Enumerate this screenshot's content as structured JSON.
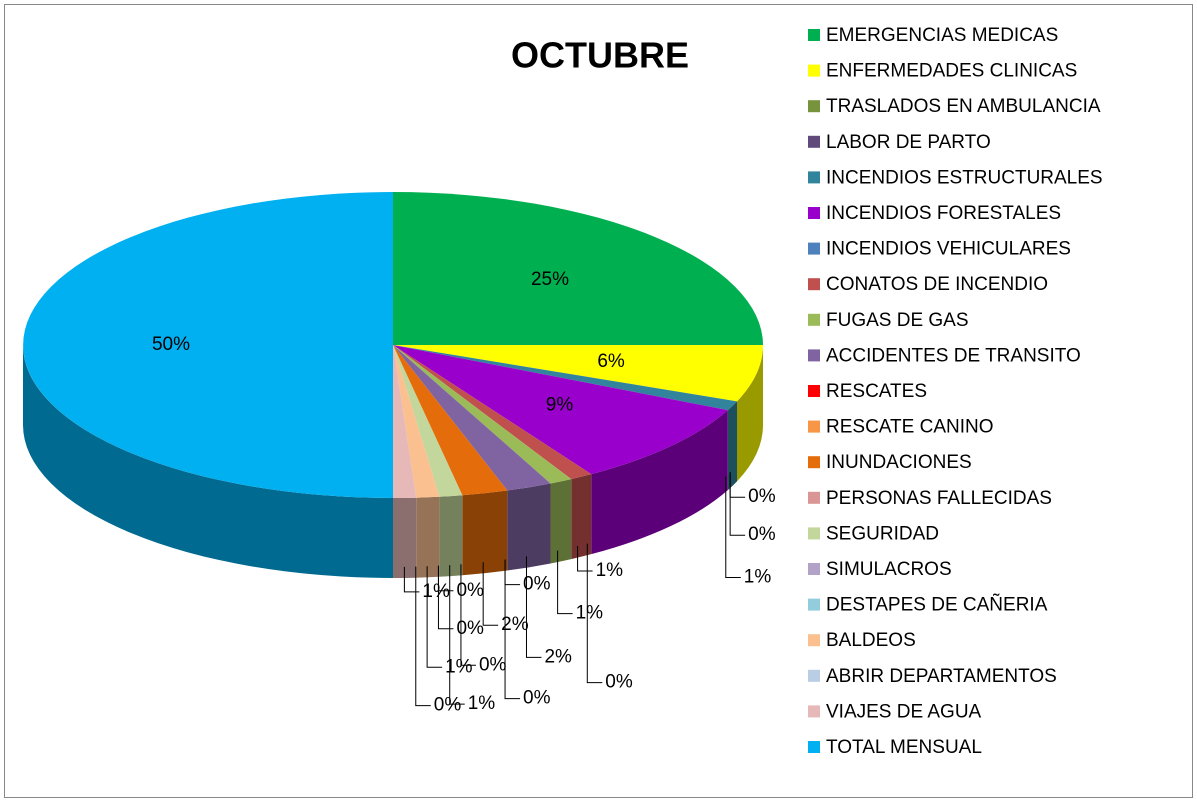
{
  "chart_data": {
    "type": "pie3d",
    "title": "OCTUBRE",
    "categories": [
      "EMERGENCIAS MEDICAS",
      "ENFERMEDADES CLINICAS",
      "TRASLADOS EN AMBULANCIA",
      "LABOR DE PARTO",
      "INCENDIOS ESTRUCTURALES",
      "INCENDIOS FORESTALES",
      "INCENDIOS VEHICULARES",
      "CONATOS DE INCENDIO",
      "FUGAS DE GAS",
      "ACCIDENTES DE TRANSITO",
      "RESCATES",
      "RESCATE CANINO",
      "INUNDACIONES",
      "PERSONAS FALLECIDAS",
      "SEGURIDAD",
      "SIMULACROS",
      "DESTAPES DE CAÑERIA",
      "BALDEOS",
      "ABRIR DEPARTAMENTOS",
      "VIAJES DE AGUA",
      "TOTAL MENSUAL"
    ],
    "values": [
      25,
      6,
      0,
      0,
      1,
      9,
      0,
      1,
      1,
      2,
      0,
      0,
      2,
      0,
      1,
      0,
      0,
      1,
      0,
      1,
      50
    ],
    "value_labels": [
      "25%",
      "6%",
      "0%",
      "0%",
      "1%",
      "9%",
      "0%",
      "1%",
      "1%",
      "2%",
      "0%",
      "0%",
      "2%",
      "0%",
      "1%",
      "0%",
      "0%",
      "1%",
      "0%",
      "1%",
      "50%"
    ],
    "colors": [
      "#00b050",
      "#ffff00",
      "#77933c",
      "#604a7b",
      "#31849b",
      "#9900cc",
      "#4f81bd",
      "#c0504d",
      "#9bbb59",
      "#8064a2",
      "#ff0000",
      "#f79646",
      "#e46c0a",
      "#d99694",
      "#c3d69b",
      "#b3a2c7",
      "#93cddd",
      "#fac090",
      "#b9cde5",
      "#e6b9b8",
      "#00b0f0"
    ],
    "legend": "right"
  }
}
